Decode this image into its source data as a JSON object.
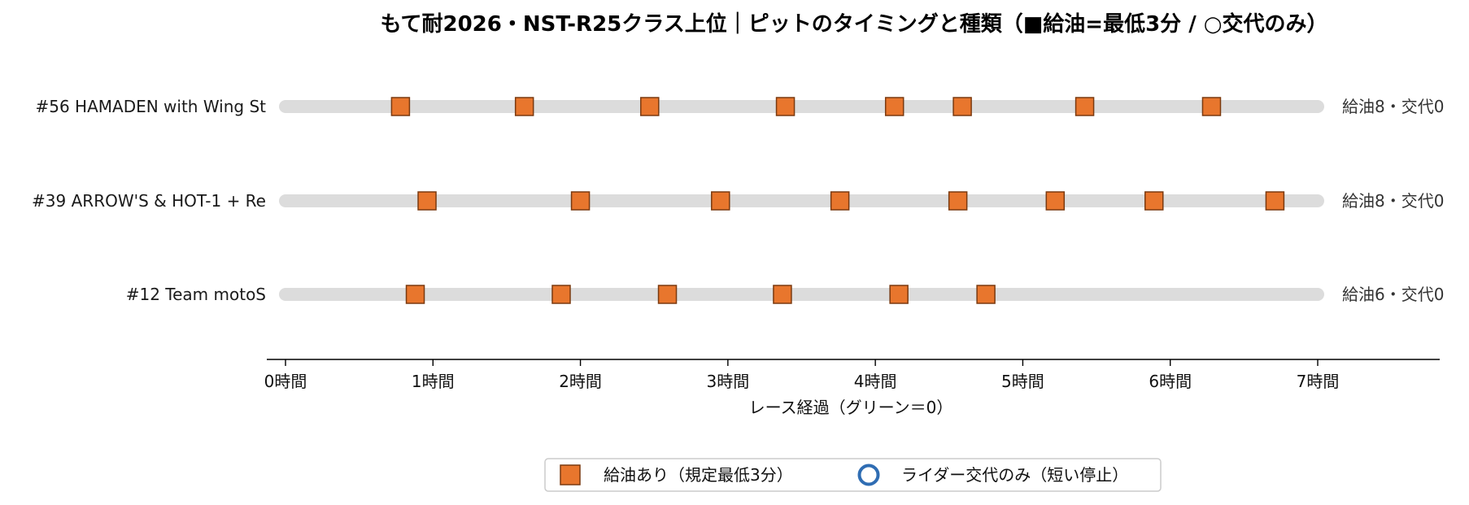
{
  "chart_data": {
    "type": "scatter",
    "title": "もて耐2026・NST-R25クラス上位｜ピットのタイミングと種類（■給油=最低3分 / ○交代のみ）",
    "xlabel": "レース経過（グリーン＝0）",
    "x_range": [
      0,
      7
    ],
    "x_ticks": [
      0,
      1,
      2,
      3,
      4,
      5,
      6,
      7
    ],
    "x_tick_labels": [
      "0時間",
      "1時間",
      "2時間",
      "3時間",
      "4時間",
      "5時間",
      "6時間",
      "7時間"
    ],
    "rows": [
      {
        "team": "#56 HAMADEN with Wing St",
        "refuel_stops": [
          0.78,
          1.62,
          2.47,
          3.39,
          4.13,
          4.59,
          5.42,
          6.28
        ],
        "change_only_stops": [],
        "summary": "給油8・交代0"
      },
      {
        "team": "#39 ARROW'S & HOT-1 + Re",
        "refuel_stops": [
          0.96,
          2.0,
          2.95,
          3.76,
          4.56,
          5.22,
          5.89,
          6.71
        ],
        "change_only_stops": [],
        "summary": "給油8・交代0"
      },
      {
        "team": "#12 Team motoS",
        "refuel_stops": [
          0.88,
          1.87,
          2.59,
          3.37,
          4.16,
          4.75
        ],
        "change_only_stops": [],
        "summary": "給油6・交代0"
      }
    ],
    "legend": {
      "position": "bottom-center",
      "entries": [
        {
          "label": "給油あり（規定最低3分）",
          "marker": "square"
        },
        {
          "label": "ライダー交代のみ（短い停止）",
          "marker": "circle"
        }
      ]
    },
    "grid": false,
    "colors": {
      "refuel_fill": "#e8762d",
      "refuel_edge": "#7a3a10",
      "change_edge": "#2f6db3",
      "track": "#dcdcdc",
      "axis": "#000000"
    }
  }
}
